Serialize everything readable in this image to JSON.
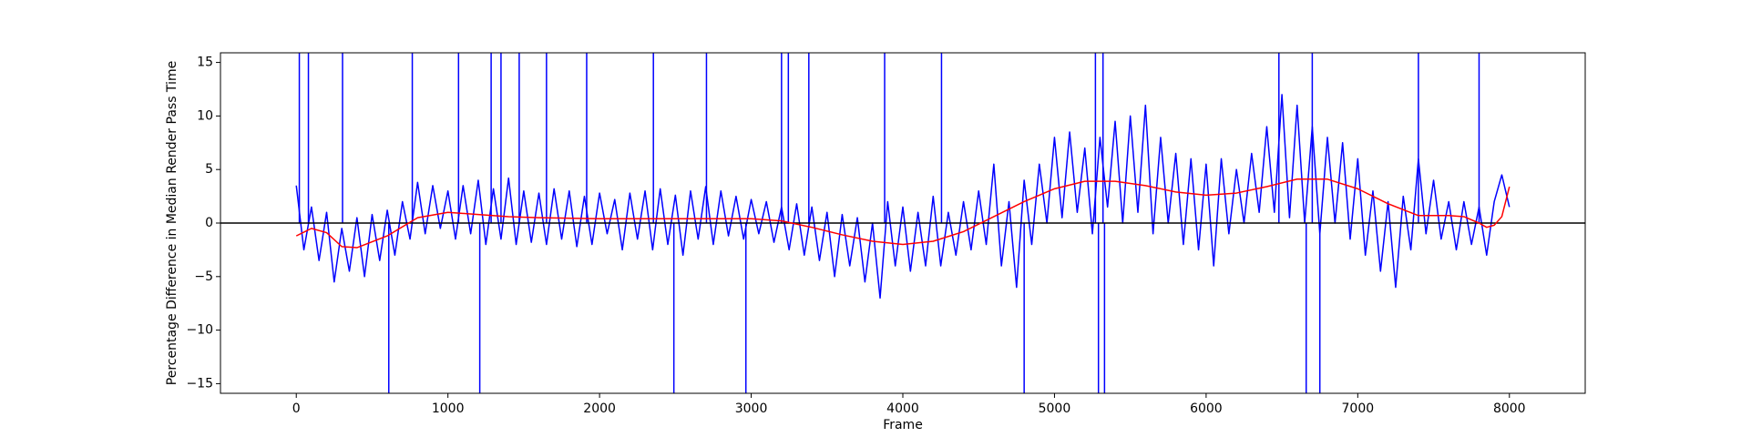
{
  "chart_data": {
    "type": "line",
    "xlabel": "Frame",
    "ylabel": "Percentage Difference in Median Render Pass Time",
    "xlim": [
      -500,
      8500
    ],
    "ylim": [
      -15.9,
      15.9
    ],
    "xticks": [
      0,
      1000,
      2000,
      3000,
      4000,
      5000,
      6000,
      7000,
      8000
    ],
    "yticks": [
      {
        "value": -15,
        "label": "−15"
      },
      {
        "value": -10,
        "label": "−10"
      },
      {
        "value": -5,
        "label": "−5"
      },
      0,
      5,
      10,
      15
    ],
    "hline": 0,
    "hline_color": "black",
    "series": [
      {
        "color": "blue",
        "style": "line",
        "x": [
          0,
          50,
          100,
          150,
          200,
          250,
          300,
          350,
          400,
          450,
          500,
          550,
          600,
          650,
          700,
          750,
          800,
          850,
          900,
          950,
          1000,
          1050,
          1100,
          1150,
          1200,
          1250,
          1300,
          1350,
          1400,
          1450,
          1500,
          1550,
          1600,
          1650,
          1700,
          1750,
          1800,
          1850,
          1900,
          1950,
          2000,
          2050,
          2100,
          2150,
          2200,
          2250,
          2300,
          2350,
          2400,
          2450,
          2500,
          2550,
          2600,
          2650,
          2700,
          2750,
          2800,
          2850,
          2900,
          2950,
          3000,
          3050,
          3100,
          3150,
          3200,
          3250,
          3300,
          3350,
          3400,
          3450,
          3500,
          3550,
          3600,
          3650,
          3700,
          3750,
          3800,
          3850,
          3900,
          3950,
          4000,
          4050,
          4100,
          4150,
          4200,
          4250,
          4300,
          4350,
          4400,
          4450,
          4500,
          4550,
          4600,
          4650,
          4700,
          4750,
          4800,
          4850,
          4900,
          4950,
          5000,
          5050,
          5100,
          5150,
          5200,
          5250,
          5300,
          5350,
          5400,
          5450,
          5500,
          5550,
          5600,
          5650,
          5700,
          5750,
          5800,
          5850,
          5900,
          5950,
          6000,
          6050,
          6100,
          6150,
          6200,
          6250,
          6300,
          6350,
          6400,
          6450,
          6500,
          6550,
          6600,
          6650,
          6700,
          6750,
          6800,
          6850,
          6900,
          6950,
          7000,
          7050,
          7100,
          7150,
          7200,
          7250,
          7300,
          7350,
          7400,
          7450,
          7500,
          7550,
          7600,
          7650,
          7700,
          7750,
          7800,
          7850,
          7900,
          7950,
          8000
        ],
        "values": [
          3.5,
          -2.5,
          1.5,
          -3.5,
          1.0,
          -5.5,
          -0.5,
          -4.5,
          0.5,
          -5.0,
          0.8,
          -3.5,
          1.2,
          -3.0,
          2.0,
          -1.5,
          3.8,
          -1.0,
          3.5,
          -0.5,
          3.0,
          -1.5,
          3.5,
          -1.0,
          4.0,
          -2.0,
          3.2,
          -1.5,
          4.2,
          -2.0,
          3.0,
          -1.8,
          2.8,
          -2.0,
          3.2,
          -1.5,
          3.0,
          -2.2,
          2.5,
          -2.0,
          2.8,
          -1.0,
          2.2,
          -2.5,
          2.8,
          -1.5,
          3.0,
          -2.5,
          3.2,
          -2.0,
          2.6,
          -3.0,
          3.0,
          -1.5,
          3.4,
          -2.0,
          3.0,
          -1.2,
          2.5,
          -1.5,
          2.2,
          -1.0,
          2.0,
          -1.8,
          1.5,
          -2.5,
          1.8,
          -3.0,
          1.5,
          -3.5,
          1.0,
          -5.0,
          0.8,
          -4.0,
          0.5,
          -5.5,
          0.0,
          -7.0,
          2.0,
          -4.0,
          1.5,
          -4.5,
          1.0,
          -4.0,
          2.5,
          -4.0,
          1.0,
          -3.0,
          2.0,
          -2.5,
          3.0,
          -2.0,
          5.5,
          -4.0,
          2.0,
          -6.0,
          4.0,
          -2.0,
          5.5,
          0.0,
          8.0,
          0.5,
          8.5,
          1.0,
          7.0,
          -1.0,
          8.0,
          1.5,
          9.5,
          0.0,
          10.0,
          1.0,
          11.0,
          -1.0,
          8.0,
          0.0,
          6.5,
          -2.0,
          6.0,
          -2.5,
          5.5,
          -4.0,
          6.0,
          -1.0,
          5.0,
          0.0,
          6.5,
          1.0,
          9.0,
          1.0,
          12.0,
          0.5,
          11.0,
          0.0,
          9.0,
          -1.0,
          8.0,
          0.0,
          7.5,
          -1.5,
          6.0,
          -3.0,
          3.0,
          -4.5,
          2.0,
          -6.0,
          2.5,
          -2.5,
          6.0,
          -1.0,
          4.0,
          -1.5,
          2.0,
          -2.5,
          2.0,
          -2.0,
          1.5,
          -3.0,
          2.0,
          4.5,
          1.5
        ]
      },
      {
        "color": "blue",
        "style": "spikes",
        "x": [
          20,
          80,
          305,
          610,
          765,
          1070,
          1210,
          1285,
          1350,
          1470,
          1650,
          1915,
          2355,
          2490,
          2705,
          2965,
          3200,
          3245,
          3380,
          3880,
          4255,
          4800,
          5270,
          5290,
          5320,
          5330,
          6480,
          6660,
          6700,
          6750,
          7400,
          7800
        ],
        "values": [
          20,
          20,
          20,
          -20,
          20,
          20,
          -20,
          20,
          20,
          20,
          20,
          20,
          20,
          -20,
          20,
          -20,
          20,
          20,
          20,
          20,
          20,
          -20,
          20,
          -20,
          20,
          -20,
          20,
          -20,
          20,
          -20,
          20,
          20
        ]
      },
      {
        "color": "red",
        "style": "line",
        "x": [
          0,
          100,
          200,
          300,
          400,
          600,
          800,
          1000,
          1200,
          1400,
          1600,
          2000,
          2400,
          2800,
          3000,
          3200,
          3400,
          3600,
          3800,
          4000,
          4200,
          4400,
          4600,
          4800,
          5000,
          5200,
          5400,
          5600,
          5800,
          6000,
          6200,
          6400,
          6600,
          6800,
          7000,
          7200,
          7400,
          7600,
          7700,
          7800,
          7850,
          7900,
          7950,
          8000
        ],
        "values": [
          -1.2,
          -0.5,
          -0.9,
          -2.2,
          -2.3,
          -1.2,
          0.5,
          1.0,
          0.8,
          0.6,
          0.5,
          0.4,
          0.4,
          0.4,
          0.4,
          0.2,
          -0.4,
          -1.1,
          -1.7,
          -2.0,
          -1.7,
          -0.8,
          0.6,
          2.0,
          3.2,
          3.9,
          3.9,
          3.5,
          2.9,
          2.6,
          2.8,
          3.4,
          4.1,
          4.1,
          3.2,
          1.8,
          0.7,
          0.7,
          0.6,
          0.0,
          -0.4,
          -0.2,
          0.6,
          3.4
        ]
      }
    ]
  }
}
